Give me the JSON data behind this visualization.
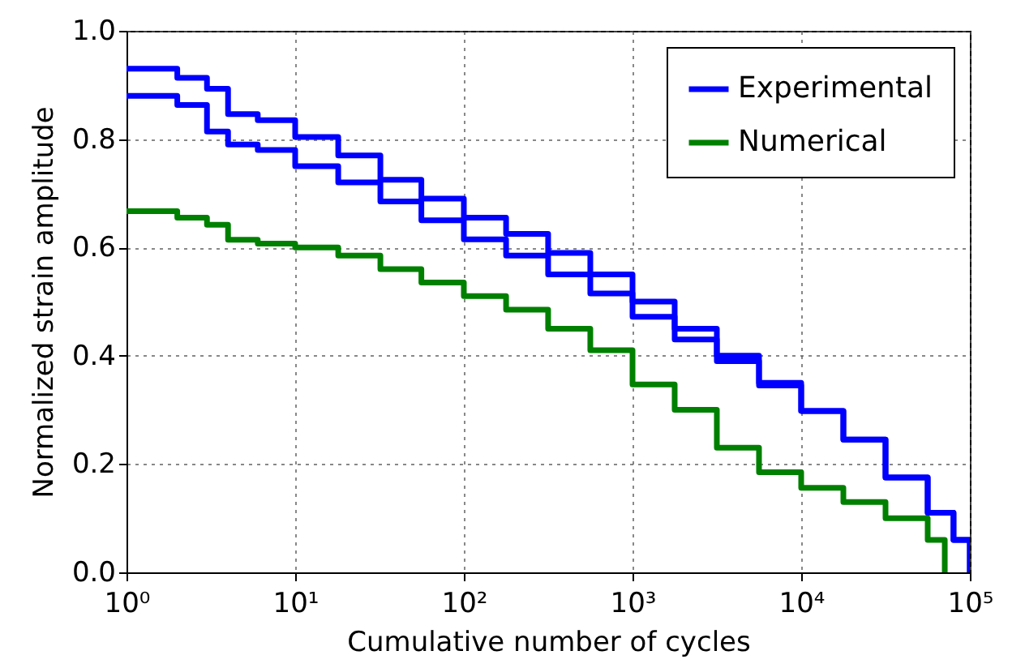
{
  "chart_data": {
    "type": "step",
    "xlabel": "Cumulative number of cycles",
    "ylabel": "Normalized strain amplitude",
    "x": [
      1,
      2,
      3,
      4,
      6,
      10,
      18,
      32,
      56,
      100,
      178,
      316,
      562,
      1000,
      1778,
      3162,
      5623,
      10000,
      17783,
      31623,
      56234,
      80000,
      100000
    ],
    "series": [
      {
        "name": "Experimental",
        "color": "#0000ff",
        "values": [
          0.93,
          0.913,
          0.893,
          0.846,
          0.835,
          0.804,
          0.77,
          0.725,
          0.69,
          0.655,
          0.625,
          0.59,
          0.55,
          0.5,
          0.45,
          0.4,
          0.35,
          0.298,
          0.245,
          0.175,
          0.11,
          0.06,
          0
        ]
      },
      {
        "color": "#0000ff",
        "values": [
          0.88,
          0.863,
          0.814,
          0.79,
          0.78,
          0.75,
          0.72,
          0.685,
          0.65,
          0.615,
          0.585,
          0.55,
          0.515,
          0.472,
          0.43,
          0.39,
          0.345,
          0.298,
          0.245,
          0.175,
          0.11,
          0.06,
          0
        ]
      },
      {
        "name": "Numerical",
        "color": "#008000",
        "x": [
          1,
          2,
          3,
          4,
          6,
          10,
          18,
          32,
          56,
          100,
          178,
          316,
          562,
          1000,
          1778,
          3162,
          5623,
          10000,
          17783,
          31623,
          56234,
          71000
        ],
        "values": [
          0.667,
          0.655,
          0.642,
          0.614,
          0.607,
          0.6,
          0.585,
          0.56,
          0.535,
          0.51,
          0.485,
          0.45,
          0.41,
          0.347,
          0.3,
          0.23,
          0.185,
          0.156,
          0.13,
          0.1,
          0.06,
          0
        ]
      }
    ],
    "xlim": [
      1,
      100000
    ],
    "ylim": [
      0,
      1
    ],
    "log": "x",
    "xticks": [
      {
        "value": 1,
        "label": "10⁰"
      },
      {
        "value": 10,
        "label": "10¹"
      },
      {
        "value": 100,
        "label": "10²"
      },
      {
        "value": 1000,
        "label": "10³"
      },
      {
        "value": 10000,
        "label": "10⁴"
      },
      {
        "value": 100000,
        "label": "10⁵"
      }
    ],
    "yticks": [
      {
        "value": 0,
        "label": "0.0"
      },
      {
        "value": 0.2,
        "label": "0.2"
      },
      {
        "value": 0.4,
        "label": "0.4"
      },
      {
        "value": 0.6,
        "label": "0.6"
      },
      {
        "value": 0.8,
        "label": "0.8"
      },
      {
        "value": 1,
        "label": "1.0"
      }
    ],
    "grid": true,
    "legend": "top right",
    "line_style": "solid"
  }
}
